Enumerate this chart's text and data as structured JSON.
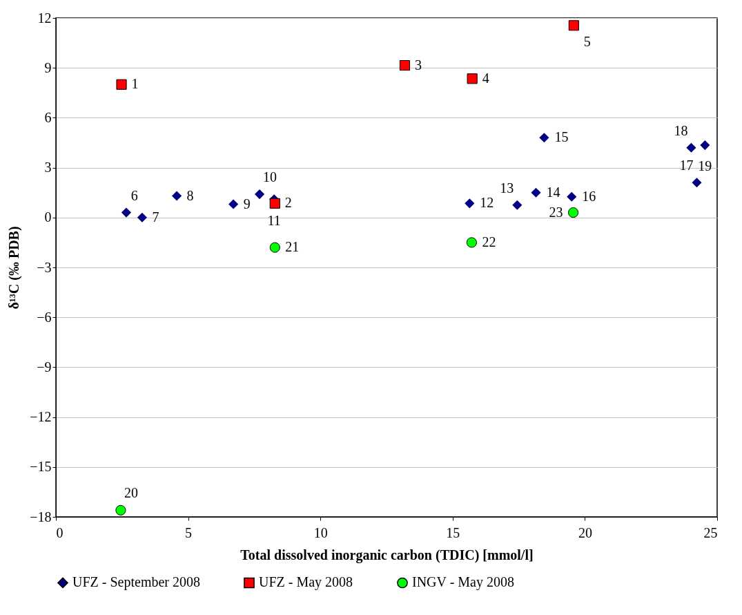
{
  "chart_data": {
    "type": "scatter",
    "xlabel": "Total dissolved inorganic carbon (TDIC) [mmol/l]",
    "ylabel": "δ¹³C (‰ PDB)",
    "xlim": [
      0,
      25
    ],
    "xticks": [
      0,
      5,
      10,
      15,
      20,
      25
    ],
    "ylim": [
      -18,
      12
    ],
    "yticks": [
      -18,
      -15,
      -12,
      -9,
      -6,
      -3,
      0,
      3,
      6,
      9,
      12
    ],
    "grid": "y",
    "legend": "bottom",
    "series": [
      {
        "name": "UFZ - September 2008",
        "color": "#000080",
        "marker": "diamond",
        "x": [
          2.66,
          3.26,
          4.57,
          6.71,
          7.7,
          8.25,
          15.64,
          17.44,
          18.15,
          18.46,
          19.5,
          24.23,
          24.02,
          24.54
        ],
        "values": [
          0.3,
          0.0,
          1.3,
          0.8,
          1.4,
          1.1,
          0.85,
          0.75,
          1.5,
          4.8,
          1.25,
          2.1,
          4.2,
          4.35
        ]
      },
      {
        "name": "UFZ - May 2008",
        "color": "#ff0000",
        "marker": "square",
        "x": [
          2.48,
          8.28,
          13.19,
          15.74,
          19.58
        ],
        "values": [
          8.0,
          0.85,
          9.15,
          8.35,
          11.55
        ]
      },
      {
        "name": "INGV - May 2008",
        "color": "#00ff00",
        "marker": "circle",
        "x": [
          2.45,
          8.28,
          15.72,
          19.56
        ],
        "values": [
          -17.6,
          -1.8,
          -1.5,
          0.3
        ]
      }
    ],
    "annotations": [
      {
        "text": "1",
        "x": 2.48,
        "y": 8.0
      },
      {
        "text": "2",
        "x": 8.28,
        "y": 0.85
      },
      {
        "text": "3",
        "x": 13.19,
        "y": 9.15
      },
      {
        "text": "4",
        "x": 15.74,
        "y": 8.35
      },
      {
        "text": "5",
        "x": 19.58,
        "y": 11.55
      },
      {
        "text": "6",
        "x": 2.66,
        "y": 0.3
      },
      {
        "text": "7",
        "x": 3.26,
        "y": 0.0
      },
      {
        "text": "8",
        "x": 4.57,
        "y": 1.3
      },
      {
        "text": "9",
        "x": 6.71,
        "y": 0.8
      },
      {
        "text": "10",
        "x": 7.7,
        "y": 1.4
      },
      {
        "text": "11",
        "x": 8.25,
        "y": 1.1
      },
      {
        "text": "12",
        "x": 15.64,
        "y": 0.85
      },
      {
        "text": "13",
        "x": 17.44,
        "y": 0.75
      },
      {
        "text": "14",
        "x": 18.15,
        "y": 1.5
      },
      {
        "text": "15",
        "x": 18.46,
        "y": 4.8
      },
      {
        "text": "16",
        "x": 19.5,
        "y": 1.25
      },
      {
        "text": "17",
        "x": 24.23,
        "y": 2.1
      },
      {
        "text": "18",
        "x": 24.02,
        "y": 4.2
      },
      {
        "text": "19",
        "x": 24.54,
        "y": 4.35
      },
      {
        "text": "20",
        "x": 2.45,
        "y": -17.6
      },
      {
        "text": "21",
        "x": 8.28,
        "y": -1.8
      },
      {
        "text": "22",
        "x": 15.72,
        "y": -1.5
      },
      {
        "text": "23",
        "x": 19.56,
        "y": 0.3
      }
    ]
  }
}
